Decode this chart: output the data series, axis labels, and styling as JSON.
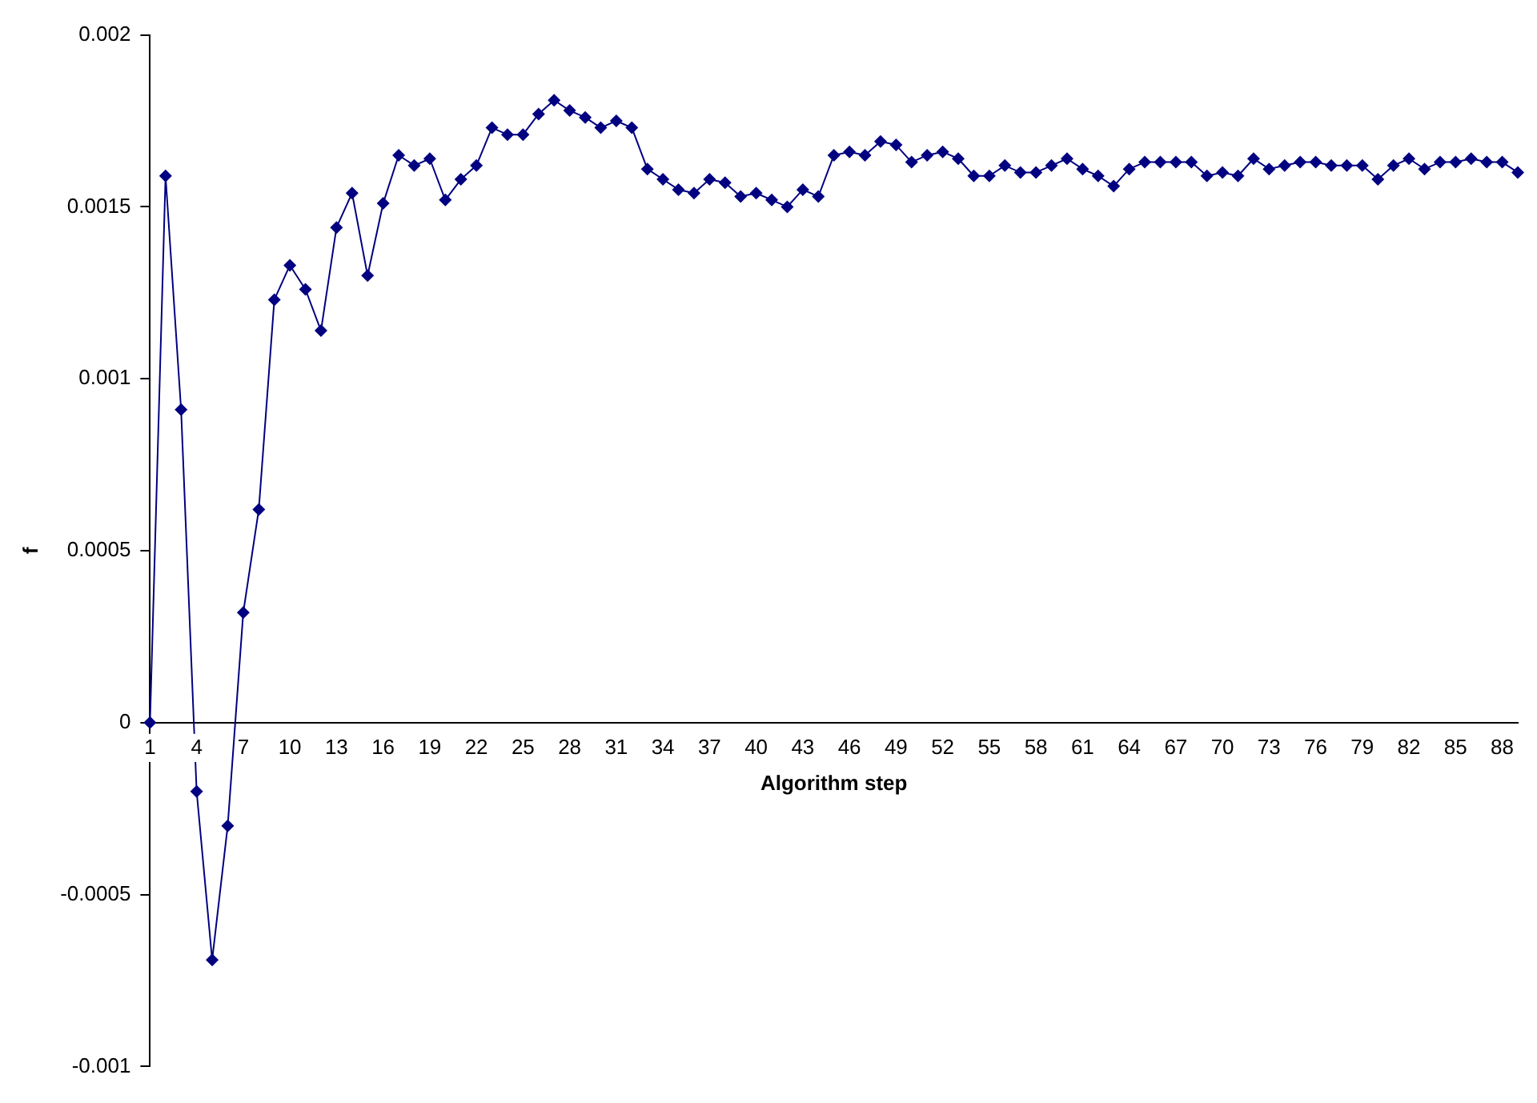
{
  "chart_data": {
    "type": "line",
    "xlabel": "Algorithm step",
    "ylabel": "f",
    "categories": [
      "1",
      null,
      null,
      "4",
      null,
      null,
      "7",
      null,
      null,
      "10",
      null,
      null,
      "13",
      null,
      null,
      "16",
      null,
      null,
      "19",
      null,
      null,
      "22",
      null,
      null,
      "25",
      null,
      null,
      "28",
      null,
      null,
      "31",
      null,
      null,
      "34",
      null,
      null,
      "37",
      null,
      null,
      "40",
      null,
      null,
      "43",
      null,
      null,
      "46",
      null,
      null,
      "49",
      null,
      null,
      "52",
      null,
      null,
      "55",
      null,
      null,
      "58",
      null,
      null,
      "61",
      null,
      null,
      "64",
      null,
      null,
      "67",
      null,
      null,
      "70",
      null,
      null,
      "73",
      null,
      null,
      "76",
      null,
      null,
      "79",
      null,
      null,
      "82",
      null,
      null,
      "85",
      null,
      null,
      "88",
      null
    ],
    "series": [
      {
        "color": "#000080",
        "values": [
          0,
          0.00159,
          0.00091,
          -0.0002,
          -0.00069,
          -0.0003,
          0.00032,
          0.00062,
          0.00123,
          0.00133,
          0.00126,
          0.00114,
          0.00144,
          0.00154,
          0.0013,
          0.00151,
          0.00165,
          0.00162,
          0.00164,
          0.00152,
          0.00158,
          0.00162,
          0.00173,
          0.00171,
          0.00171,
          0.00177,
          0.00181,
          0.00178,
          0.00176,
          0.00173,
          0.00175,
          0.00173,
          0.00161,
          0.00158,
          0.00155,
          0.00154,
          0.00158,
          0.00157,
          0.00153,
          0.00154,
          0.00152,
          0.0015,
          0.00155,
          0.00153,
          0.00165,
          0.00166,
          0.00165,
          0.00169,
          0.00168,
          0.00163,
          0.00165,
          0.00166,
          0.00164,
          0.00159,
          0.00159,
          0.00162,
          0.0016,
          0.0016,
          0.00162,
          0.00164,
          0.00161,
          0.00159,
          0.00156,
          0.00161,
          0.00163,
          0.00163,
          0.00163,
          0.00163,
          0.00159,
          0.0016,
          0.00159,
          0.00164,
          0.00161,
          0.00162,
          0.00163,
          0.00163,
          0.00162,
          0.00162,
          0.00162,
          0.00158,
          0.00162,
          0.00164,
          0.00161,
          0.00163,
          0.00163,
          0.00164,
          0.00163,
          0.00163,
          0.0016
        ]
      }
    ],
    "ylim": [
      -0.001,
      0.002
    ],
    "yticks": [
      -0.001,
      -0.0005,
      0,
      0.0005,
      0.001,
      0.0015,
      0.002
    ],
    "marker": "diamond"
  }
}
